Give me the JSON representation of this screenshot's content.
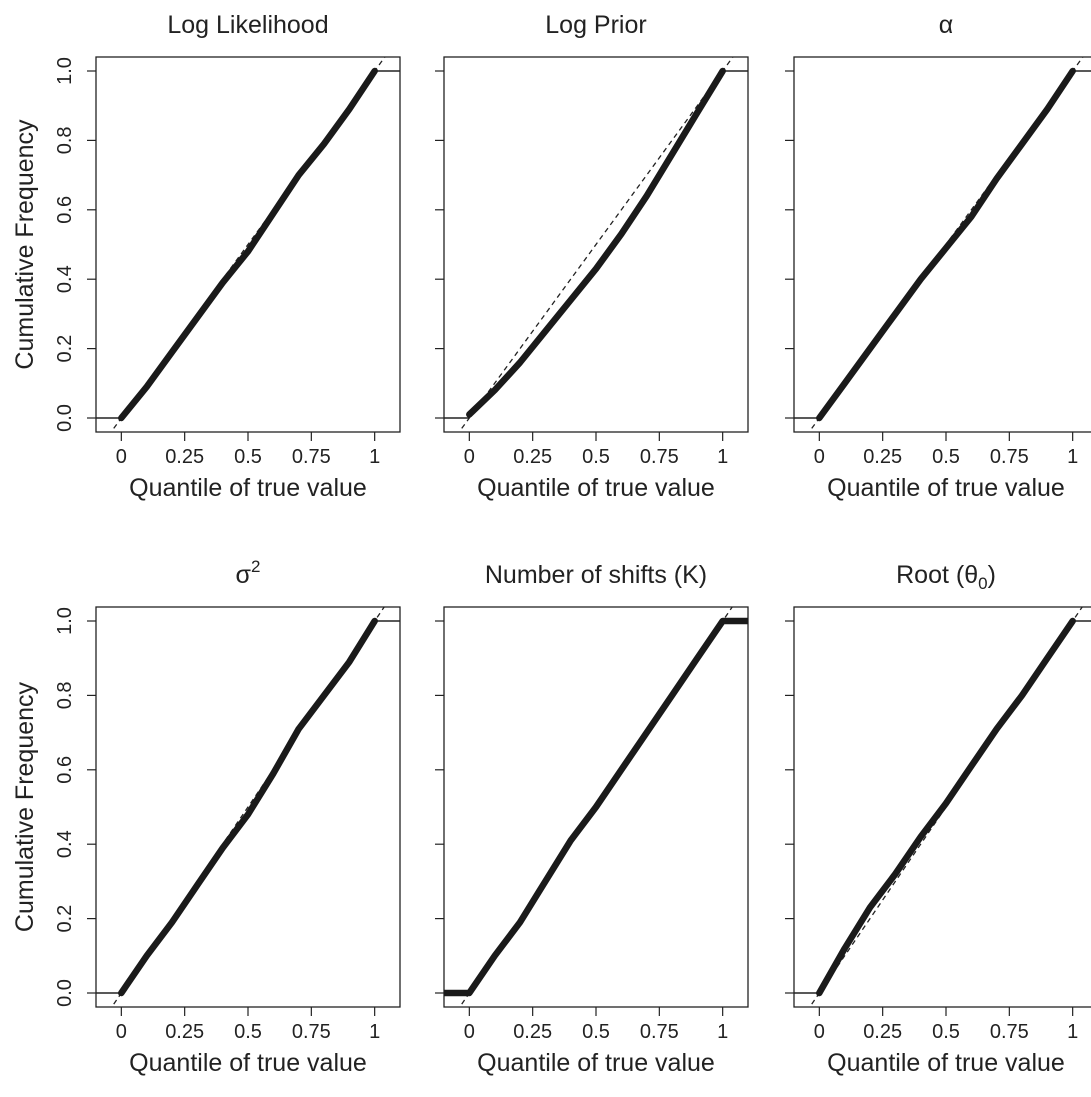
{
  "chart_data": [
    {
      "type": "line",
      "title": "Log Likelihood",
      "xlabel": "Quantile of true value",
      "ylabel": "Cumulative Frequency",
      "xlim": [
        -0.1,
        1.1
      ],
      "ylim": [
        0,
        1
      ],
      "x_ticks": [
        "0",
        "0.25",
        "0.5",
        "0.75",
        "1"
      ],
      "y_ticks": [
        "0.0",
        "0.2",
        "0.4",
        "0.6",
        "0.8",
        "1.0"
      ],
      "reference_line": "dashed y = x",
      "series": [
        {
          "x": [
            0,
            0.1,
            0.2,
            0.3,
            0.4,
            0.5,
            0.6,
            0.7,
            0.8,
            0.9,
            1.0
          ],
          "y": [
            0,
            0.09,
            0.19,
            0.29,
            0.39,
            0.48,
            0.59,
            0.7,
            0.79,
            0.89,
            1.0
          ]
        }
      ]
    },
    {
      "type": "line",
      "title": "Log Prior",
      "xlabel": "Quantile of true value",
      "ylabel": "",
      "xlim": [
        -0.1,
        1.1
      ],
      "ylim": [
        0,
        1
      ],
      "x_ticks": [
        "0",
        "0.25",
        "0.5",
        "0.75",
        "1"
      ],
      "y_ticks": [],
      "reference_line": "dashed y = x",
      "series": [
        {
          "x": [
            0,
            0.1,
            0.2,
            0.3,
            0.4,
            0.5,
            0.6,
            0.7,
            0.8,
            0.9,
            1.0
          ],
          "y": [
            0.01,
            0.08,
            0.16,
            0.25,
            0.34,
            0.43,
            0.53,
            0.64,
            0.76,
            0.88,
            1.0
          ]
        }
      ]
    },
    {
      "type": "line",
      "title": "α",
      "xlabel": "Quantile of true value",
      "ylabel": "",
      "xlim": [
        -0.1,
        1.1
      ],
      "ylim": [
        0,
        1
      ],
      "x_ticks": [
        "0",
        "0.25",
        "0.5",
        "0.75",
        "1"
      ],
      "y_ticks": [],
      "reference_line": "dashed y = x",
      "series": [
        {
          "x": [
            0,
            0.1,
            0.2,
            0.3,
            0.4,
            0.5,
            0.6,
            0.7,
            0.8,
            0.9,
            1.0
          ],
          "y": [
            0,
            0.1,
            0.2,
            0.3,
            0.4,
            0.49,
            0.58,
            0.69,
            0.79,
            0.89,
            1.0
          ]
        }
      ]
    },
    {
      "type": "line",
      "title": "σ²",
      "xlabel": "Quantile of true value",
      "ylabel": "Cumulative Frequency",
      "xlim": [
        -0.1,
        1.1
      ],
      "ylim": [
        0,
        1
      ],
      "x_ticks": [
        "0",
        "0.25",
        "0.5",
        "0.75",
        "1"
      ],
      "y_ticks": [
        "0.0",
        "0.2",
        "0.4",
        "0.6",
        "0.8",
        "1.0"
      ],
      "reference_line": "dashed y = x",
      "series": [
        {
          "x": [
            0,
            0.1,
            0.2,
            0.3,
            0.4,
            0.5,
            0.6,
            0.7,
            0.8,
            0.9,
            1.0
          ],
          "y": [
            0,
            0.1,
            0.19,
            0.29,
            0.39,
            0.48,
            0.59,
            0.71,
            0.8,
            0.89,
            1.0
          ]
        }
      ]
    },
    {
      "type": "line",
      "title": "Number of shifts (K)",
      "xlabel": "Quantile of true value",
      "ylabel": "",
      "xlim": [
        -0.1,
        1.1
      ],
      "ylim": [
        0,
        1
      ],
      "x_ticks": [
        "0",
        "0.25",
        "0.5",
        "0.75",
        "1"
      ],
      "y_ticks": [],
      "reference_line": "dashed y = x",
      "series": [
        {
          "x": [
            -0.1,
            0,
            0.1,
            0.2,
            0.3,
            0.4,
            0.5,
            0.6,
            0.7,
            0.8,
            0.9,
            1.0,
            1.1
          ],
          "y": [
            0,
            0,
            0.1,
            0.19,
            0.3,
            0.41,
            0.5,
            0.6,
            0.7,
            0.8,
            0.9,
            1.0,
            1.0
          ]
        }
      ]
    },
    {
      "type": "line",
      "title": "Root (θ₀)",
      "xlabel": "Quantile of true value",
      "ylabel": "",
      "xlim": [
        -0.1,
        1.1
      ],
      "ylim": [
        0,
        1
      ],
      "x_ticks": [
        "0",
        "0.25",
        "0.5",
        "0.75",
        "1"
      ],
      "y_ticks": [],
      "reference_line": "dashed y = x",
      "series": [
        {
          "x": [
            0,
            0.1,
            0.2,
            0.3,
            0.4,
            0.5,
            0.6,
            0.7,
            0.8,
            0.9,
            1.0
          ],
          "y": [
            0,
            0.12,
            0.23,
            0.32,
            0.42,
            0.51,
            0.61,
            0.71,
            0.8,
            0.9,
            1.0
          ]
        }
      ]
    }
  ]
}
